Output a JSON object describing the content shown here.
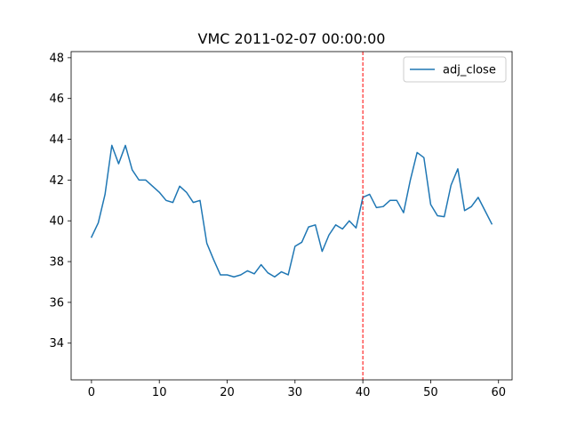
{
  "chart_data": {
    "type": "line",
    "title": "VMC 2011-02-07 00:00:00",
    "xlabel": "",
    "ylabel": "",
    "xlim": [
      -3,
      62
    ],
    "ylim": [
      32.2,
      48.3
    ],
    "xticks": [
      0,
      10,
      20,
      30,
      40,
      50,
      60
    ],
    "yticks": [
      34,
      36,
      38,
      40,
      42,
      44,
      46,
      48
    ],
    "grid": false,
    "legend_position": "top-right",
    "series": [
      {
        "name": "adj_close",
        "color": "#1f77b4",
        "x": [
          0,
          1,
          2,
          3,
          4,
          5,
          6,
          7,
          8,
          9,
          10,
          11,
          12,
          13,
          14,
          15,
          16,
          17,
          18,
          19,
          20,
          21,
          22,
          23,
          24,
          25,
          26,
          27,
          28,
          29,
          30,
          31,
          32,
          33,
          34,
          35,
          36,
          37,
          38,
          39,
          40,
          41,
          42,
          43,
          44,
          45,
          46,
          47,
          48,
          49,
          50,
          51,
          52,
          53,
          54,
          55,
          56,
          57,
          58,
          59
        ],
        "values": [
          39.2,
          39.9,
          41.3,
          43.7,
          42.8,
          43.7,
          42.5,
          42.0,
          42.0,
          41.7,
          41.4,
          41.0,
          40.9,
          41.7,
          41.4,
          40.9,
          41.0,
          38.9,
          38.1,
          37.35,
          37.35,
          37.25,
          37.35,
          37.55,
          37.4,
          37.85,
          37.45,
          37.25,
          37.5,
          37.35,
          38.75,
          38.95,
          39.7,
          39.8,
          38.5,
          39.3,
          39.8,
          39.6,
          40.0,
          39.65,
          41.15,
          41.3,
          40.65,
          40.7,
          41.0,
          41.0,
          40.4,
          42.0,
          43.35,
          43.1,
          40.8,
          40.25,
          40.2,
          41.75,
          42.55,
          40.5,
          40.7,
          41.15,
          40.5,
          39.85
        ]
      }
    ],
    "annotations": [
      {
        "type": "vline",
        "x": 40,
        "color": "#ff0000",
        "style": "dashed"
      }
    ]
  }
}
